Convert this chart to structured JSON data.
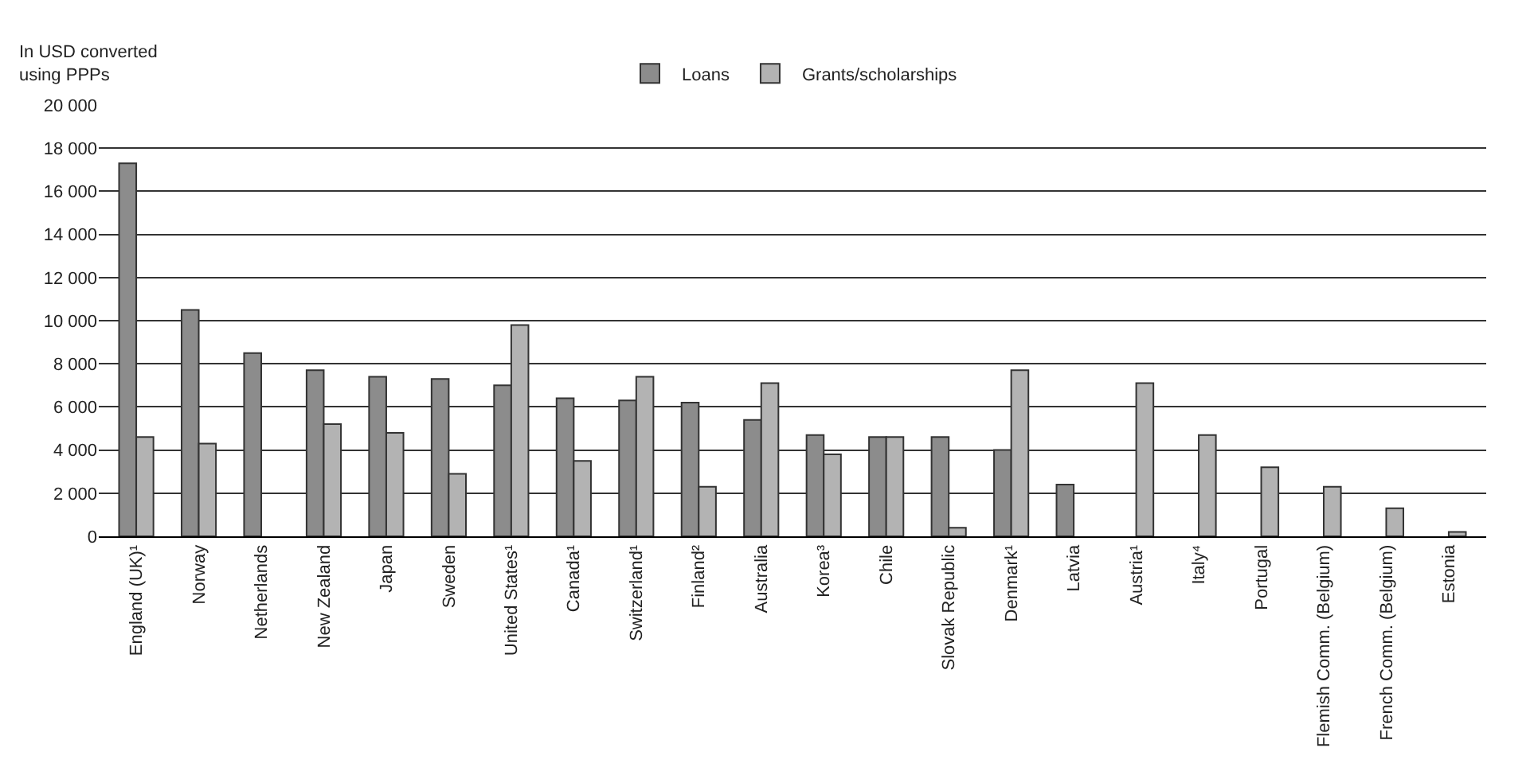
{
  "chart_data": {
    "type": "bar",
    "ylabel": "In USD converted using PPPs",
    "categories": [
      "England (UK)¹",
      "Norway",
      "Netherlands",
      "New Zealand",
      "Japan",
      "Sweden",
      "United States¹",
      "Canada¹",
      "Switzerland¹",
      "Finland²",
      "Australia",
      "Korea³",
      "Chile",
      "Slovak Republic",
      "Denmark¹",
      "Latvia",
      "Austria¹",
      "Italy⁴",
      "Portugal",
      "Flemish Comm. (Belgium)",
      "French Comm. (Belgium)",
      "Estonia"
    ],
    "series": [
      {
        "name": "Loans",
        "color": "#8c8c8c",
        "values": [
          17300,
          10500,
          8500,
          7700,
          7400,
          7300,
          7000,
          6400,
          6300,
          6200,
          5400,
          4700,
          4600,
          4600,
          4000,
          2400,
          null,
          null,
          null,
          null,
          null,
          null
        ]
      },
      {
        "name": "Grants/scholarships",
        "color": "#b3b3b3",
        "values": [
          4600,
          4300,
          null,
          5200,
          4800,
          2900,
          9800,
          3500,
          7400,
          2300,
          7100,
          3800,
          4600,
          400,
          7700,
          null,
          7100,
          4700,
          3200,
          2300,
          1300,
          200
        ]
      }
    ],
    "ylim": [
      0,
      20000
    ],
    "yticks": [
      {
        "value": 0,
        "label": "0"
      },
      {
        "value": 2000,
        "label": "2 000"
      },
      {
        "value": 4000,
        "label": "4 000"
      },
      {
        "value": 6000,
        "label": "6 000"
      },
      {
        "value": 8000,
        "label": "8 000"
      },
      {
        "value": 10000,
        "label": "10 000"
      },
      {
        "value": 12000,
        "label": "12 000"
      },
      {
        "value": 14000,
        "label": "14 000"
      },
      {
        "value": 16000,
        "label": "16 000"
      },
      {
        "value": 18000,
        "label": "18 000"
      },
      {
        "value": 20000,
        "label": "20 000"
      }
    ],
    "grid": "y",
    "legend": "top"
  }
}
